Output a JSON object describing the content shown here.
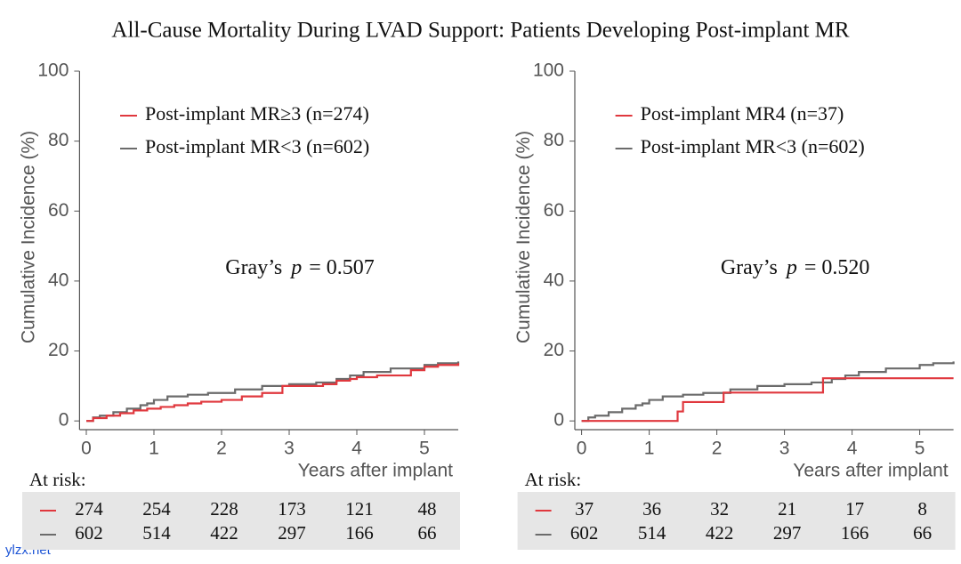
{
  "title": "All-Cause Mortality During LVAD Support: Patients Developing Post-implant MR",
  "watermark": "ylzx.net",
  "chart_data": [
    {
      "type": "step",
      "ylabel": "Cumulative Incidence (%)",
      "xlabel": "Years after implant",
      "xlim": [
        -0.1,
        5.5
      ],
      "xticks": [
        0,
        1,
        2,
        3,
        4,
        5
      ],
      "ylim": [
        -2.5,
        100
      ],
      "yticks": [
        0,
        20,
        40,
        60,
        80,
        100
      ],
      "annotation": {
        "prefix": "Gray’s",
        "symbol": "p",
        "value": "= 0.507"
      },
      "series": [
        {
          "name": "Post-implant MR≥3 (n=274)",
          "color": "#e0383e",
          "x": [
            0,
            0.1,
            0.3,
            0.5,
            0.7,
            0.9,
            1.1,
            1.3,
            1.5,
            1.7,
            2.0,
            2.3,
            2.6,
            2.9,
            3.5,
            3.7,
            3.9,
            4.0,
            4.3,
            4.8,
            5.0,
            5.2,
            5.5
          ],
          "values": [
            0,
            0.8,
            1.5,
            2.2,
            3,
            3.5,
            4,
            4.5,
            5,
            5.5,
            6,
            7,
            8,
            10,
            10.5,
            11.5,
            12,
            12.5,
            13,
            14.5,
            15.5,
            16,
            16.5
          ]
        },
        {
          "name": "Post-implant MR<3 (n=602)",
          "color": "#6b6b6b",
          "x": [
            0,
            0.1,
            0.2,
            0.4,
            0.6,
            0.8,
            0.9,
            1.0,
            1.2,
            1.5,
            1.8,
            2.2,
            2.6,
            3.0,
            3.4,
            3.7,
            3.9,
            4.1,
            4.5,
            5.0,
            5.2,
            5.5
          ],
          "values": [
            0,
            1,
            1.5,
            2.5,
            3.5,
            4.5,
            5,
            6,
            7,
            7.5,
            8,
            9,
            10,
            10.5,
            11,
            12,
            13,
            14,
            15,
            16,
            16.5,
            17
          ]
        }
      ],
      "at_risk": {
        "label": "At risk:",
        "rows": [
          [
            274,
            254,
            228,
            173,
            121,
            48
          ],
          [
            602,
            514,
            422,
            297,
            166,
            66
          ]
        ]
      }
    },
    {
      "type": "step",
      "ylabel": "Cumulative Incidence (%)",
      "xlabel": "Years after implant",
      "xlim": [
        -0.1,
        5.5
      ],
      "xticks": [
        0,
        1,
        2,
        3,
        4,
        5
      ],
      "ylim": [
        -2.5,
        100
      ],
      "yticks": [
        0,
        20,
        40,
        60,
        80,
        100
      ],
      "annotation": {
        "prefix": "Gray’s",
        "symbol": "p",
        "value": "= 0.520"
      },
      "series": [
        {
          "name": "Post-implant MR4 (n=37)",
          "color": "#e0383e",
          "x": [
            0,
            1.42,
            1.5,
            2.1,
            3.57,
            5.5
          ],
          "values": [
            0,
            2.7,
            5.4,
            8.1,
            12.2,
            12.2
          ]
        },
        {
          "name": "Post-implant MR<3 (n=602)",
          "color": "#6b6b6b",
          "x": [
            0,
            0.1,
            0.2,
            0.4,
            0.6,
            0.8,
            0.9,
            1.0,
            1.2,
            1.5,
            1.8,
            2.2,
            2.6,
            3.0,
            3.4,
            3.7,
            3.9,
            4.1,
            4.5,
            5.0,
            5.2,
            5.5
          ],
          "values": [
            0,
            1,
            1.5,
            2.5,
            3.5,
            4.5,
            5,
            6,
            7,
            7.5,
            8,
            9,
            10,
            10.5,
            11,
            12,
            13,
            14,
            15,
            16,
            16.5,
            17
          ]
        }
      ],
      "at_risk": {
        "label": "At risk:",
        "rows": [
          [
            37,
            36,
            32,
            21,
            17,
            8
          ],
          [
            602,
            514,
            422,
            297,
            166,
            66
          ]
        ]
      }
    }
  ]
}
